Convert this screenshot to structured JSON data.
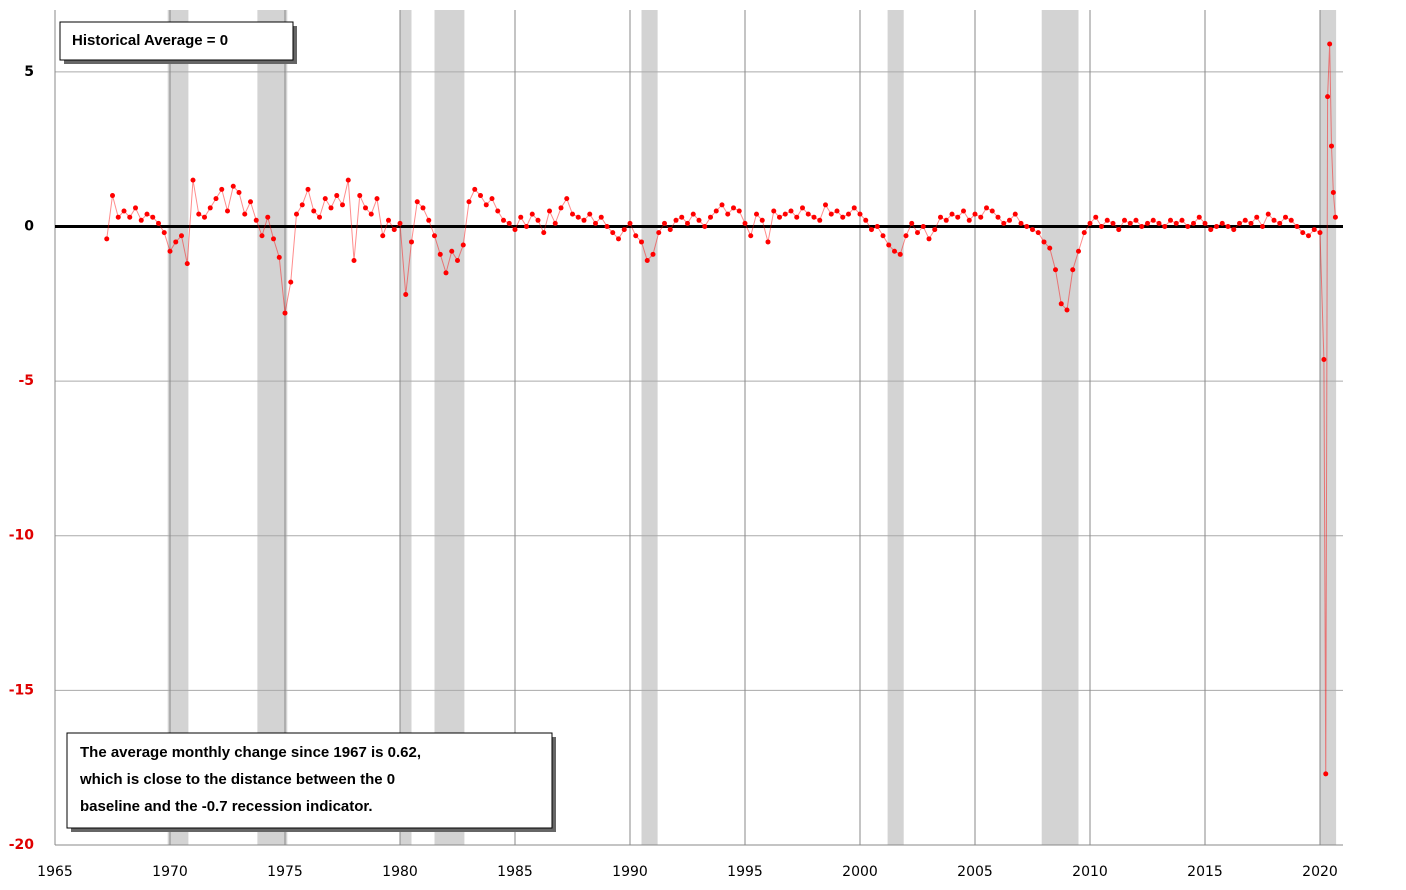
{
  "chart_data": {
    "type": "line",
    "annotations": [
      "Historical Average = 0",
      [
        "The average monthly change since 1967  is 0.62,",
        "which is close to the distance between the 0",
        "baseline and the -0.7 recession indicator."
      ]
    ],
    "xlim": [
      1965,
      2021
    ],
    "xticks": [
      1965,
      1970,
      1975,
      1980,
      1985,
      1990,
      1995,
      2000,
      2005,
      2010,
      2015,
      2020
    ],
    "ylim": [
      -20,
      7
    ],
    "yticks": [
      -20,
      -15,
      -10,
      -5,
      0,
      5
    ],
    "negative_tick_color": "#e00000",
    "grid": true,
    "recessions": [
      [
        1969.9,
        1970.8
      ],
      [
        1973.8,
        1975.1
      ],
      [
        1980.0,
        1980.5
      ],
      [
        1981.5,
        1982.8
      ],
      [
        1990.5,
        1991.2
      ],
      [
        2001.2,
        2001.9
      ],
      [
        2007.9,
        2009.5
      ],
      [
        2020.0,
        2020.7
      ]
    ],
    "recession_color": "#d3d3d3",
    "series": [
      {
        "color": "#ff0000",
        "x": [
          1967.25,
          1967.5,
          1967.75,
          1968,
          1968.25,
          1968.5,
          1968.75,
          1969,
          1969.25,
          1969.5,
          1969.75,
          1970,
          1970.25,
          1970.5,
          1970.75,
          1971,
          1971.25,
          1971.5,
          1971.75,
          1972,
          1972.25,
          1972.5,
          1972.75,
          1973,
          1973.25,
          1973.5,
          1973.75,
          1974,
          1974.25,
          1974.5,
          1974.75,
          1975,
          1975.25,
          1975.5,
          1975.75,
          1976,
          1976.25,
          1976.5,
          1976.75,
          1977,
          1977.25,
          1977.5,
          1977.75,
          1978,
          1978.25,
          1978.5,
          1978.75,
          1979,
          1979.25,
          1979.5,
          1979.75,
          1980,
          1980.25,
          1980.5,
          1980.75,
          1981,
          1981.25,
          1981.5,
          1981.75,
          1982,
          1982.25,
          1982.5,
          1982.75,
          1983,
          1983.25,
          1983.5,
          1983.75,
          1984,
          1984.25,
          1984.5,
          1984.75,
          1985,
          1985.25,
          1985.5,
          1985.75,
          1986,
          1986.25,
          1986.5,
          1986.75,
          1987,
          1987.25,
          1987.5,
          1987.75,
          1988,
          1988.25,
          1988.5,
          1988.75,
          1989,
          1989.25,
          1989.5,
          1989.75,
          1990,
          1990.25,
          1990.5,
          1990.75,
          1991,
          1991.25,
          1991.5,
          1991.75,
          1992,
          1992.25,
          1992.5,
          1992.75,
          1993,
          1993.25,
          1993.5,
          1993.75,
          1994,
          1994.25,
          1994.5,
          1994.75,
          1995,
          1995.25,
          1995.5,
          1995.75,
          1996,
          1996.25,
          1996.5,
          1996.75,
          1997,
          1997.25,
          1997.5,
          1997.75,
          1998,
          1998.25,
          1998.5,
          1998.75,
          1999,
          1999.25,
          1999.5,
          1999.75,
          2000,
          2000.25,
          2000.5,
          2000.75,
          2001,
          2001.25,
          2001.5,
          2001.75,
          2002,
          2002.25,
          2002.5,
          2002.75,
          2003,
          2003.25,
          2003.5,
          2003.75,
          2004,
          2004.25,
          2004.5,
          2004.75,
          2005,
          2005.25,
          2005.5,
          2005.75,
          2006,
          2006.25,
          2006.5,
          2006.75,
          2007,
          2007.25,
          2007.5,
          2007.75,
          2008,
          2008.25,
          2008.5,
          2008.75,
          2009,
          2009.25,
          2009.5,
          2009.75,
          2010,
          2010.25,
          2010.5,
          2010.75,
          2011,
          2011.25,
          2011.5,
          2011.75,
          2012,
          2012.25,
          2012.5,
          2012.75,
          2013,
          2013.25,
          2013.5,
          2013.75,
          2014,
          2014.25,
          2014.5,
          2014.75,
          2015,
          2015.25,
          2015.5,
          2015.75,
          2016,
          2016.25,
          2016.5,
          2016.75,
          2017,
          2017.25,
          2017.5,
          2017.75,
          2018,
          2018.25,
          2018.5,
          2018.75,
          2019,
          2019.25,
          2019.5,
          2019.75,
          2020,
          2020.17,
          2020.25,
          2020.33,
          2020.42,
          2020.5,
          2020.58,
          2020.67
        ],
        "values": [
          -0.4,
          1.0,
          0.3,
          0.5,
          0.3,
          0.6,
          0.2,
          0.4,
          0.3,
          0.1,
          -0.2,
          -0.8,
          -0.5,
          -0.3,
          -1.2,
          1.5,
          0.4,
          0.3,
          0.6,
          0.9,
          1.2,
          0.5,
          1.3,
          1.1,
          0.4,
          0.8,
          0.2,
          -0.3,
          0.3,
          -0.4,
          -1.0,
          -2.8,
          -1.8,
          0.4,
          0.7,
          1.2,
          0.5,
          0.3,
          0.9,
          0.6,
          1.0,
          0.7,
          1.5,
          -1.1,
          1.0,
          0.6,
          0.4,
          0.9,
          -0.3,
          0.2,
          -0.1,
          0.1,
          -2.2,
          -0.5,
          0.8,
          0.6,
          0.2,
          -0.3,
          -0.9,
          -1.5,
          -0.8,
          -1.1,
          -0.6,
          0.8,
          1.2,
          1.0,
          0.7,
          0.9,
          0.5,
          0.2,
          0.1,
          -0.1,
          0.3,
          0.0,
          0.4,
          0.2,
          -0.2,
          0.5,
          0.1,
          0.6,
          0.9,
          0.4,
          0.3,
          0.2,
          0.4,
          0.1,
          0.3,
          0.0,
          -0.2,
          -0.4,
          -0.1,
          0.1,
          -0.3,
          -0.5,
          -1.1,
          -0.9,
          -0.2,
          0.1,
          -0.1,
          0.2,
          0.3,
          0.1,
          0.4,
          0.2,
          0.0,
          0.3,
          0.5,
          0.7,
          0.4,
          0.6,
          0.5,
          0.1,
          -0.3,
          0.4,
          0.2,
          -0.5,
          0.5,
          0.3,
          0.4,
          0.5,
          0.3,
          0.6,
          0.4,
          0.3,
          0.2,
          0.7,
          0.4,
          0.5,
          0.3,
          0.4,
          0.6,
          0.4,
          0.2,
          -0.1,
          0.0,
          -0.3,
          -0.6,
          -0.8,
          -0.9,
          -0.3,
          0.1,
          -0.2,
          0.0,
          -0.4,
          -0.1,
          0.3,
          0.2,
          0.4,
          0.3,
          0.5,
          0.2,
          0.4,
          0.3,
          0.6,
          0.5,
          0.3,
          0.1,
          0.2,
          0.4,
          0.1,
          0.0,
          -0.1,
          -0.2,
          -0.5,
          -0.7,
          -1.4,
          -2.5,
          -2.7,
          -1.4,
          -0.8,
          -0.2,
          0.1,
          0.3,
          0.0,
          0.2,
          0.1,
          -0.1,
          0.2,
          0.1,
          0.2,
          0.0,
          0.1,
          0.2,
          0.1,
          0.0,
          0.2,
          0.1,
          0.2,
          0.0,
          0.1,
          0.3,
          0.1,
          -0.1,
          0.0,
          0.1,
          0.0,
          -0.1,
          0.1,
          0.2,
          0.1,
          0.3,
          0.0,
          0.4,
          0.2,
          0.1,
          0.3,
          0.2,
          0.0,
          -0.2,
          -0.3,
          -0.1,
          -0.2,
          -4.3,
          -17.7,
          4.2,
          5.9,
          2.6,
          1.1,
          0.3
        ]
      }
    ]
  }
}
